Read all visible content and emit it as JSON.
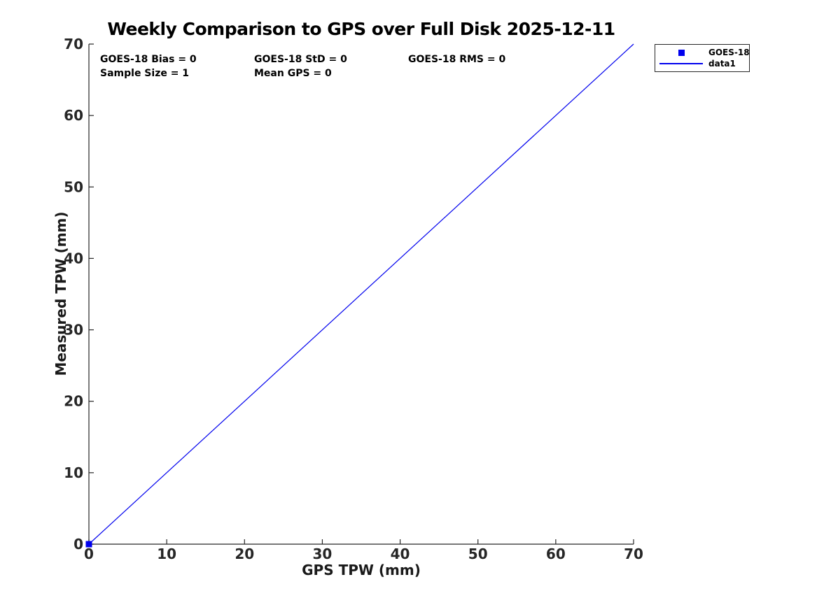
{
  "title": "Weekly Comparison to GPS over Full Disk 2025-12-11",
  "annotations": {
    "bias": "GOES-18 Bias = 0",
    "std": "GOES-18 StD = 0",
    "rms": "GOES-18 RMS = 0",
    "sample_size": "Sample Size = 1",
    "mean_gps": "Mean GPS = 0"
  },
  "legend": {
    "entries": [
      {
        "label": "GOES-18",
        "marker": "square",
        "color": "#0000ee"
      },
      {
        "label": "data1",
        "marker": "line",
        "color": "#0000ee"
      }
    ]
  },
  "colors": {
    "axis": "#262626",
    "series_blue": "#0000ee",
    "background": "#ffffff",
    "text": "#000000"
  },
  "chart_data": {
    "type": "scatter",
    "title": "Weekly Comparison to GPS over Full Disk 2025-12-11",
    "xlabel": "GPS TPW (mm)",
    "ylabel": "Measured TPW (mm)",
    "xlim": [
      0,
      70
    ],
    "ylim": [
      0,
      70
    ],
    "xticks": [
      0,
      10,
      20,
      30,
      40,
      50,
      60,
      70
    ],
    "yticks": [
      0,
      10,
      20,
      30,
      40,
      50,
      60,
      70
    ],
    "grid": false,
    "legend_position": "outside-top-right",
    "series": [
      {
        "name": "GOES-18",
        "type": "scatter",
        "marker": "square",
        "color": "#0000ee",
        "points": [
          [
            0,
            0
          ]
        ]
      },
      {
        "name": "data1",
        "type": "line",
        "color": "#0000ee",
        "points": [
          [
            0,
            0
          ],
          [
            70,
            70
          ]
        ]
      }
    ],
    "stats": {
      "bias": 0,
      "std": 0,
      "rms": 0,
      "sample_size": 1,
      "mean_gps": 0
    }
  }
}
